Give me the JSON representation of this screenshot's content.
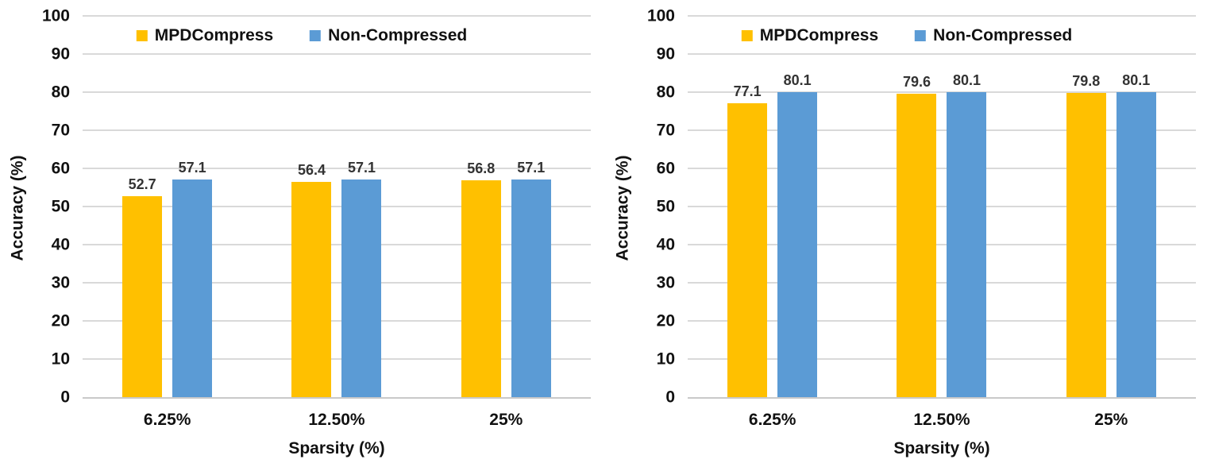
{
  "colors": {
    "mpdcompress": "#FFC000",
    "non_compressed": "#5B9BD5",
    "gridline": "#D9D9D9",
    "axis_line": "#C9C9C9",
    "data_label": "#333333",
    "text": "#111111"
  },
  "chart_data": [
    {
      "type": "bar",
      "title": "",
      "categories": [
        "6.25%",
        "12.50%",
        "25%"
      ],
      "series": [
        {
          "name": "MPDCompress",
          "color": "#FFC000",
          "values": [
            52.7,
            56.4,
            56.8
          ]
        },
        {
          "name": "Non-Compressed",
          "color": "#5B9BD5",
          "values": [
            57.1,
            57.1,
            57.1
          ]
        }
      ],
      "data_labels": [
        [
          "52.7",
          "56.4",
          "56.8"
        ],
        [
          "57.1",
          "57.1",
          "57.1"
        ]
      ],
      "xlabel": "Sparsity (%)",
      "ylabel": "Accuracy (%)",
      "ylim": [
        0,
        100
      ],
      "ytick_step": 10,
      "yticks": [
        "0",
        "10",
        "20",
        "30",
        "40",
        "50",
        "60",
        "70",
        "80",
        "90",
        "100"
      ],
      "grid": true,
      "legend_position": "top"
    },
    {
      "type": "bar",
      "title": "",
      "categories": [
        "6.25%",
        "12.50%",
        "25%"
      ],
      "series": [
        {
          "name": "MPDCompress",
          "color": "#FFC000",
          "values": [
            77.1,
            79.6,
            79.8
          ]
        },
        {
          "name": "Non-Compressed",
          "color": "#5B9BD5",
          "values": [
            80.1,
            80.1,
            80.1
          ]
        }
      ],
      "data_labels": [
        [
          "77.1",
          "79.6",
          "79.8"
        ],
        [
          "80.1",
          "80.1",
          "80.1"
        ]
      ],
      "xlabel": "Sparsity (%)",
      "ylabel": "Accuracy (%)",
      "ylim": [
        0,
        100
      ],
      "ytick_step": 10,
      "yticks": [
        "0",
        "10",
        "20",
        "30",
        "40",
        "50",
        "60",
        "70",
        "80",
        "90",
        "100"
      ],
      "grid": true,
      "legend_position": "top"
    }
  ]
}
